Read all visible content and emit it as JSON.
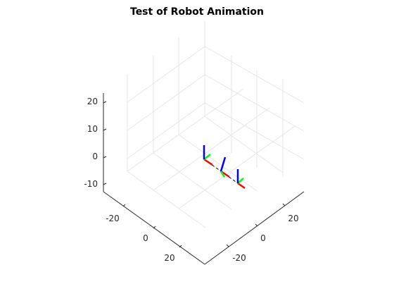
{
  "figure": {
    "title": "Test of Robot Animation"
  },
  "axes": {
    "z_ticks": [
      "20",
      "10",
      "0",
      "-10"
    ],
    "x_ticks": [
      "-20",
      "0",
      "20"
    ],
    "y_ticks": [
      "20",
      "0",
      "-20"
    ],
    "grid": true,
    "colors": {
      "x_axis_frame": "#ff0000",
      "y_axis_frame": "#00ff00",
      "z_axis_frame": "#0000ff",
      "link": "#000000",
      "grid": "#e6e6e6",
      "box": "#262626"
    }
  },
  "robot": {
    "frames": [
      "base-frame",
      "joint-1-frame",
      "end-effector-frame"
    ]
  }
}
